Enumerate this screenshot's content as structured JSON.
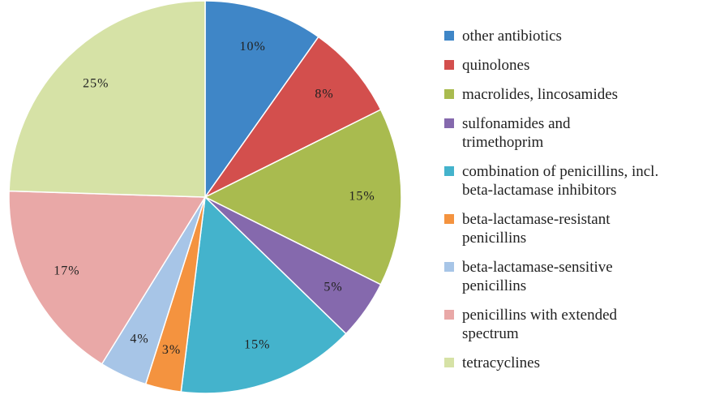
{
  "chart_data": {
    "type": "pie",
    "categories": [
      "other antibiotics",
      "quinolones",
      "macrolides, lincosamides",
      "sulfonamides and\ntrimethoprim",
      "combination of penicillins, incl.\nbeta-lactamase inhibitors",
      "beta-lactamase-resistant\npenicillins",
      "beta-lactamase-sensitive\npenicillins",
      "penicillins with extended\nspectrum",
      "tetracyclines"
    ],
    "values": [
      10,
      8,
      15,
      5,
      15,
      3,
      4,
      17,
      25
    ],
    "value_labels": [
      "10%",
      "8%",
      "15%",
      "5%",
      "15%",
      "3%",
      "4%",
      "17%",
      "25%"
    ],
    "colors": [
      "#3f86c7",
      "#d34f4d",
      "#a9bb4f",
      "#8569ad",
      "#44b3cc",
      "#f4933f",
      "#a7c5e7",
      "#e9a8a7",
      "#d6e2a6"
    ],
    "legend": "right"
  }
}
